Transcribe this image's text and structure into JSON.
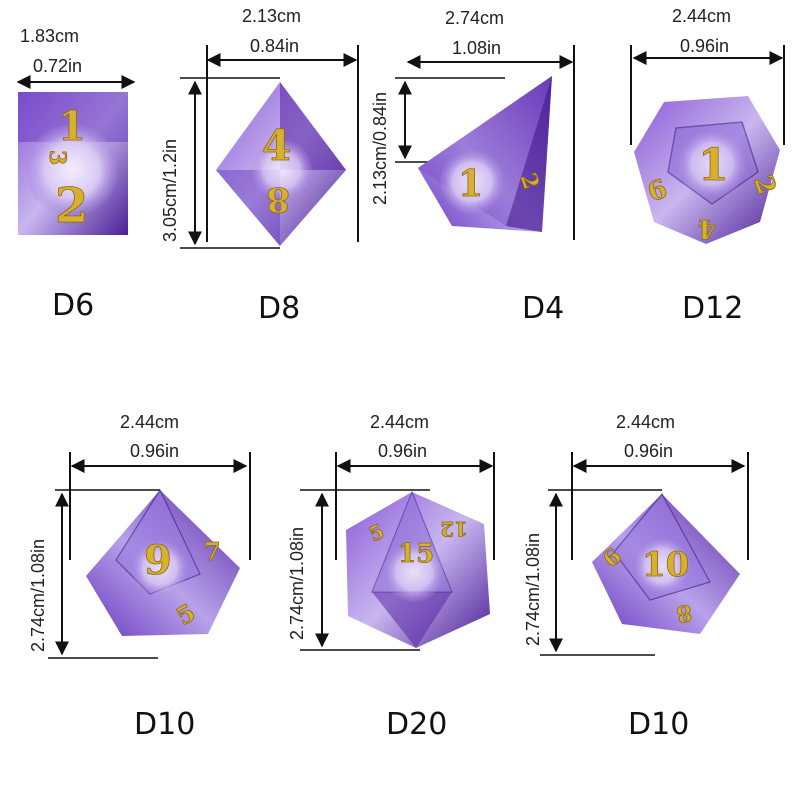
{
  "colors": {
    "resin_dark": "#4a1f96",
    "resin_mid": "#7a4fc8",
    "resin_light": "#c8b8ee",
    "gold": "#d8b030",
    "line": "#111111"
  },
  "dice": [
    {
      "name": "D6",
      "width_cm": "1.83cm",
      "width_in": "0.72in",
      "face_numbers": [
        "1",
        "2",
        "3"
      ]
    },
    {
      "name": "D8",
      "width_cm": "2.13cm",
      "width_in": "0.84in",
      "height_label": "3.05cm/1.2in",
      "face_numbers": [
        "4",
        "8"
      ]
    },
    {
      "name": "D4",
      "width_cm": "2.74cm",
      "width_in": "1.08in",
      "height_label": "2.13cm/0.84in",
      "face_numbers": [
        "1",
        "2"
      ]
    },
    {
      "name": "D12",
      "width_cm": "2.44cm",
      "width_in": "0.96in",
      "face_numbers": [
        "1",
        "6",
        "2",
        "4"
      ]
    },
    {
      "name": "D10",
      "width_cm": "2.44cm",
      "width_in": "0.96in",
      "height_label": "2.74cm/1.08in",
      "face_numbers": [
        "9",
        "7",
        "5"
      ]
    },
    {
      "name": "D20",
      "width_cm": "2.44cm",
      "width_in": "0.96in",
      "height_label": "2.74cm/1.08in",
      "face_numbers": [
        "15",
        "5",
        "12"
      ]
    },
    {
      "name": "D10",
      "width_cm": "2.44cm",
      "width_in": "0.96in",
      "height_label": "2.74cm/1.08in",
      "face_numbers": [
        "10",
        "6",
        "8"
      ]
    }
  ]
}
